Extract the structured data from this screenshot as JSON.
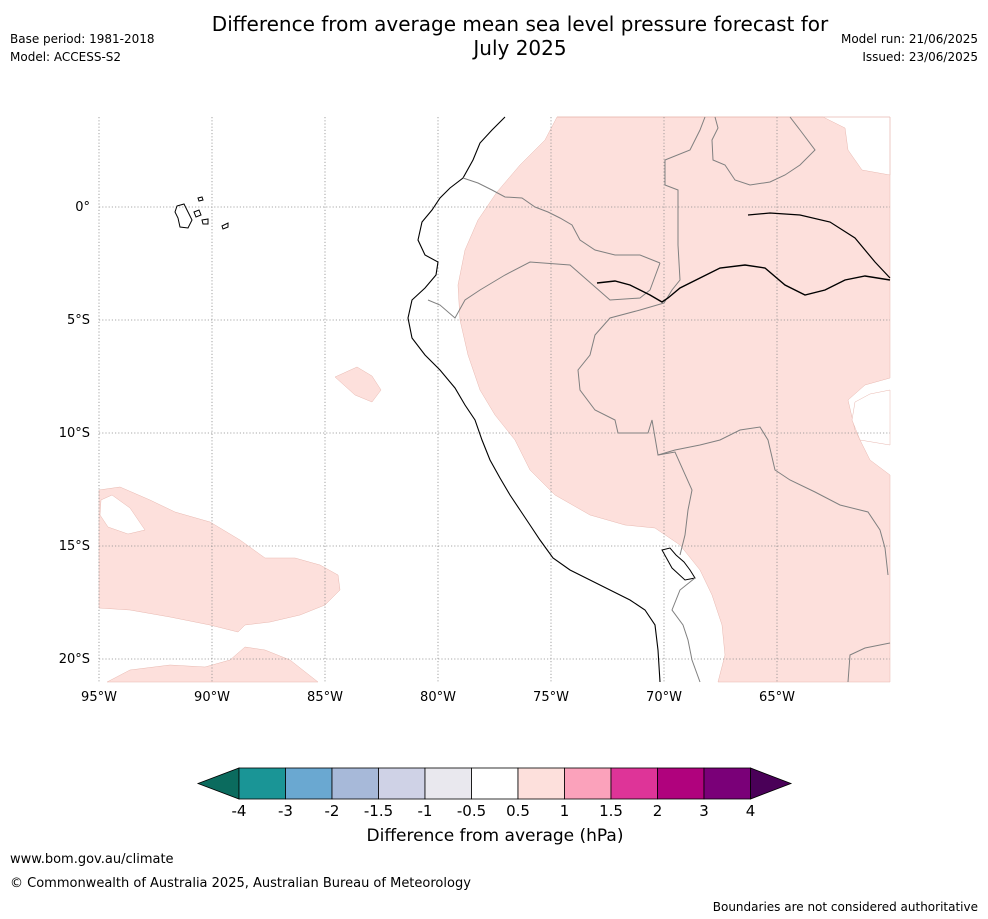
{
  "title": "Difference from average mean sea level pressure forecast for July 2025",
  "title_line1": "Difference from average mean sea level pressure forecast for",
  "title_line2": "July 2025",
  "base_period": "Base period: 1981-2018",
  "model": "Model: ACCESS-S2",
  "model_run": "Model run: 21/06/2025",
  "issued": "Issued: 23/06/2025",
  "lat_labels": [
    "0°",
    "5°S",
    "10°S",
    "15°S",
    "20°S"
  ],
  "lon_labels": [
    "95°W",
    "90°W",
    "85°W",
    "80°W",
    "75°W",
    "70°W",
    "65°W"
  ],
  "colorbar": {
    "title": "Difference from average (hPa)",
    "ticks": [
      "-4",
      "-3",
      "-2",
      "-1.5",
      "-1",
      "-0.5",
      "0.5",
      "1",
      "1.5",
      "2",
      "3",
      "4"
    ],
    "colors": [
      "#1a9596",
      "#6aa8d1",
      "#a7b9d9",
      "#cfd2e6",
      "#e9e8ee",
      "#ffffff",
      "#fde0dc",
      "#fba2bb",
      "#de3498",
      "#b0027d",
      "#7a0078"
    ],
    "under_color": "#0b6b5e",
    "over_color": "#4a0058"
  },
  "footer_url": "www.bom.gov.au/climate",
  "footer_copyright": "© Commonwealth of Australia 2025, Australian Bureau of Meteorology",
  "footer_note": "Boundaries are not considered authoritative"
}
